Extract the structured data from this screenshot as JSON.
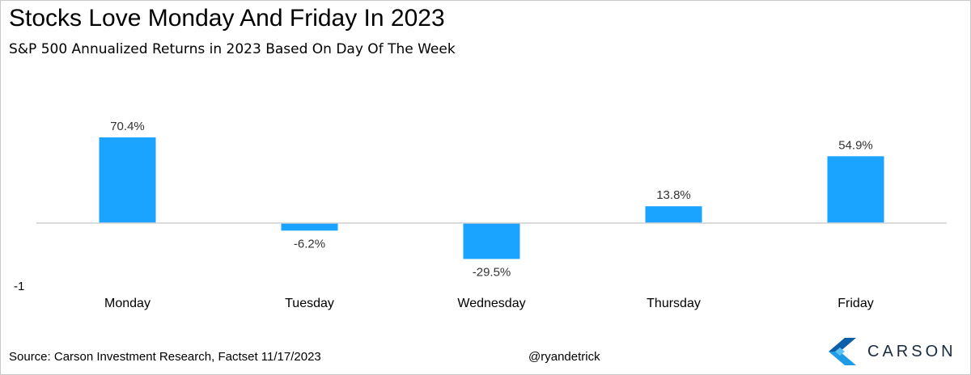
{
  "title": "Stocks Love Monday And Friday In 2023",
  "subtitle": "S&P 500 Annualized Returns in 2023 Based On Day Of The Week",
  "source": "Source: Carson Investment Research, Factset 11/17/2023",
  "handle": "@ryandetrick",
  "brand": {
    "name": "CARSON",
    "logo_icon": "carson-chevron-logo",
    "colors": [
      "#0a5fa8",
      "#1e9be6",
      "#5cc3f0"
    ]
  },
  "colors": {
    "bar": "#1aa3ff",
    "axis": "#d0d0d0"
  },
  "chart_data": {
    "type": "bar",
    "title": "",
    "xlabel": "",
    "ylabel": "",
    "categories": [
      "Monday",
      "Tuesday",
      "Wednesday",
      "Thursday",
      "Friday"
    ],
    "values": [
      70.4,
      -6.2,
      -29.5,
      13.8,
      54.9
    ],
    "data_labels": [
      "70.4%",
      "-6.2%",
      "-29.5%",
      "13.8%",
      "54.9%"
    ],
    "y_tick_labels": [
      "-1"
    ],
    "ylim": [
      -51,
      100
    ],
    "grid": false,
    "legend": "none"
  }
}
